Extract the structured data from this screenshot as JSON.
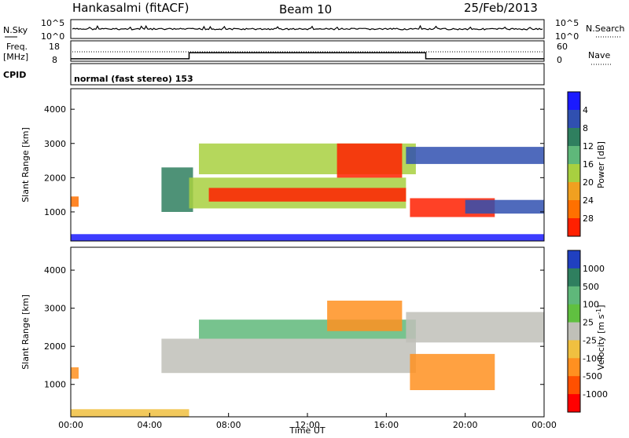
{
  "header": {
    "station": "Hankasalmi (fitACF)",
    "beam": "Beam 10",
    "date": "25/Feb/2013"
  },
  "strip_panels": {
    "nsky": {
      "left_label": "N.Sky",
      "right_label": "N.Search",
      "left_ticks": [
        "10^5",
        "10^0"
      ],
      "right_ticks": [
        "10^5",
        "10^0"
      ]
    },
    "freq": {
      "left_label_1": "Freq.",
      "left_label_2": "[MHz]",
      "left_ticks": [
        "18",
        "8"
      ],
      "right_label": "Nave",
      "right_ticks": [
        "60",
        "0"
      ],
      "step_series": {
        "x_hours": [
          0,
          6,
          6,
          18,
          18,
          24
        ],
        "value_fraction": [
          0.12,
          0.12,
          0.42,
          0.42,
          0.12,
          0.12
        ]
      }
    },
    "cpid": {
      "label": "CPID",
      "mode_text": "normal (fast stereo) 153"
    }
  },
  "chart_data": [
    {
      "type": "heatmap",
      "name": "power",
      "ylabel": "Slant Range [km]",
      "xlabel": "",
      "y_ticks": [
        "1000",
        "2000",
        "3000",
        "4000"
      ],
      "ylim": [
        150,
        4600
      ],
      "colorbar_label": "Power [dB]",
      "colorbar_ticks": [
        "4",
        "8",
        "12",
        "16",
        "20",
        "24",
        "28"
      ],
      "colorbar_colors": [
        "#1a1aff",
        "#3050b0",
        "#2f7f5f",
        "#5fb87a",
        "#a8d040",
        "#f0a020",
        "#ff7000",
        "#ff2000"
      ],
      "regions": [
        {
          "t0": 0.0,
          "t1": 0.4,
          "r0": 1150,
          "r1": 1450,
          "level": 6
        },
        {
          "t0": 4.6,
          "t1": 6.2,
          "r0": 1000,
          "r1": 2300,
          "level": 2
        },
        {
          "t0": 6.0,
          "t1": 17.0,
          "r0": 1100,
          "r1": 2000,
          "level": 4
        },
        {
          "t0": 7.0,
          "t1": 17.0,
          "r0": 1300,
          "r1": 1700,
          "level": 7
        },
        {
          "t0": 6.5,
          "t1": 17.5,
          "r0": 2100,
          "r1": 3000,
          "level": 4
        },
        {
          "t0": 13.5,
          "t1": 16.8,
          "r0": 2000,
          "r1": 3000,
          "level": 7
        },
        {
          "t0": 17.2,
          "t1": 21.5,
          "r0": 850,
          "r1": 1400,
          "level": 7
        },
        {
          "t0": 17.0,
          "t1": 24.0,
          "r0": 2400,
          "r1": 2900,
          "level": 1
        },
        {
          "t0": 20.0,
          "t1": 24.0,
          "r0": 950,
          "r1": 1350,
          "level": 1
        },
        {
          "t0": 0.0,
          "t1": 24.0,
          "r0": 150,
          "r1": 350,
          "level": 0
        }
      ]
    },
    {
      "type": "heatmap",
      "name": "velocity",
      "ylabel": "Slant Range [km]",
      "xlabel": "Time UT",
      "x_ticks": [
        "00:00",
        "04:00",
        "08:00",
        "12:00",
        "16:00",
        "20:00",
        "00:00"
      ],
      "y_ticks": [
        "1000",
        "2000",
        "3000",
        "4000"
      ],
      "ylim": [
        150,
        4600
      ],
      "colorbar_label": "Velocity [m s",
      "colorbar_label_sup": "-1",
      "colorbar_label_end": "]",
      "colorbar_ticks": [
        "1000",
        "500",
        "100",
        "25",
        "-25",
        "-100",
        "-500",
        "-1000"
      ],
      "colorbar_colors": [
        "#2040c0",
        "#2f7f5f",
        "#5fb87a",
        "#60c040",
        "#c0c0b8",
        "#f0c040",
        "#ff9020",
        "#ff5000",
        "#ff0000"
      ],
      "regions": [
        {
          "t0": 0.0,
          "t1": 0.4,
          "r0": 1150,
          "r1": 1450,
          "level": 6
        },
        {
          "t0": 4.6,
          "t1": 17.5,
          "r0": 1300,
          "r1": 2200,
          "level": 4
        },
        {
          "t0": 6.5,
          "t1": 17.5,
          "r0": 2200,
          "r1": 2700,
          "level": 2
        },
        {
          "t0": 13.0,
          "t1": 16.8,
          "r0": 2400,
          "r1": 3200,
          "level": 6
        },
        {
          "t0": 17.2,
          "t1": 21.5,
          "r0": 850,
          "r1": 1800,
          "level": 6
        },
        {
          "t0": 17.0,
          "t1": 24.0,
          "r0": 2100,
          "r1": 2900,
          "level": 4
        },
        {
          "t0": 0.0,
          "t1": 6.0,
          "r0": 150,
          "r1": 350,
          "level": 5
        }
      ]
    }
  ]
}
